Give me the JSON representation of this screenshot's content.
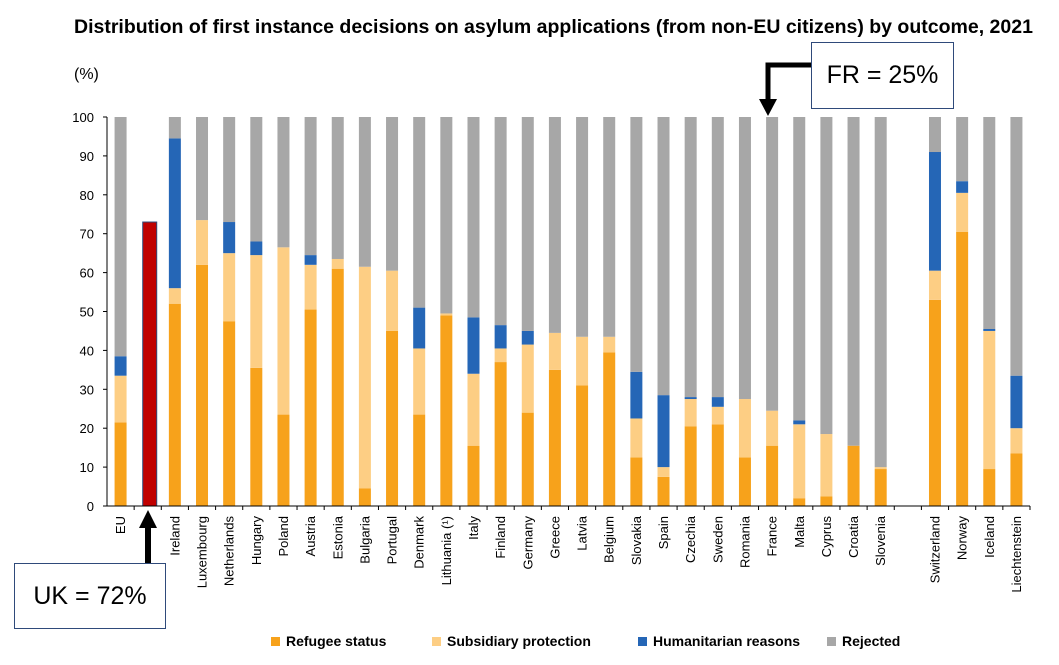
{
  "title": "Distribution of first instance decisions on asylum applications (from non-EU citizens) by outcome, 2021",
  "unit_label": "(%)",
  "callouts": {
    "fr": "FR = 25%",
    "uk": "UK  = 72%"
  },
  "colors": {
    "refugee": "#f7a21b",
    "subsidiary": "#fdce84",
    "humanitarian": "#2566b6",
    "rejected": "#a7a7a7",
    "highlight": "#c00000"
  },
  "chart_data": {
    "type": "bar",
    "stacked": true,
    "title": "Distribution of first instance decisions on asylum applications (from non-EU citizens) by outcome, 2021",
    "ylabel": "(%)",
    "ylim": [
      0,
      100
    ],
    "yticks": [
      0,
      10,
      20,
      30,
      40,
      50,
      60,
      70,
      80,
      90,
      100
    ],
    "grid": false,
    "legend_position": "bottom",
    "categories": [
      "EU",
      "",
      "Ireland",
      "Luxembourg",
      "Netherlands",
      "Hungary",
      "Poland",
      "Austria",
      "Estonia",
      "Bulgaria",
      "Portugal",
      "Denmark",
      "Lithuania (¹)",
      "Italy",
      "Finland",
      "Germany",
      "Greece",
      "Latvia",
      "Belgium",
      "Slovakia",
      "Spain",
      "Czechia",
      "Sweden",
      "Romania",
      "France",
      "Malta",
      "Cyprus",
      "Croatia",
      "Slovenia",
      "",
      "Switzerland",
      "Norway",
      "Iceland",
      "Liechtenstein"
    ],
    "series": [
      {
        "name": "Refugee status",
        "values": [
          21.5,
          null,
          52,
          62,
          47.5,
          35.5,
          23.5,
          50.5,
          61,
          4.5,
          45,
          23.5,
          49,
          15.5,
          37,
          24,
          35,
          31,
          39.5,
          12.5,
          7.5,
          20.5,
          21,
          12.5,
          15.5,
          2,
          2.5,
          15.5,
          9.5,
          null,
          53,
          70.5,
          9.5,
          13.5
        ]
      },
      {
        "name": "Subsidiary protection",
        "values": [
          12,
          null,
          4,
          11.5,
          17.5,
          29,
          43,
          11.5,
          2.5,
          57,
          15.5,
          17,
          0.5,
          18.5,
          3.5,
          17.5,
          9.5,
          12.5,
          4,
          10,
          2.5,
          7,
          4.5,
          15,
          9,
          19,
          16,
          0,
          0.5,
          null,
          7.5,
          10,
          35.5,
          6.5
        ]
      },
      {
        "name": "Humanitarian reasons",
        "values": [
          5,
          null,
          38.5,
          0,
          8,
          3.5,
          0,
          2.5,
          0,
          0,
          0,
          10.5,
          0,
          14.5,
          6,
          3.5,
          0,
          0,
          0,
          12,
          18.5,
          0.5,
          2.5,
          0,
          0,
          1,
          0,
          0,
          0,
          null,
          30.5,
          3,
          0.5,
          13.5
        ]
      },
      {
        "name": "Rejected",
        "values": [
          61.5,
          null,
          5.5,
          26.5,
          27,
          32,
          33.5,
          35.5,
          36.5,
          38.5,
          39.5,
          49,
          50.5,
          51.5,
          53.5,
          55,
          55.5,
          56.5,
          56.5,
          65.5,
          71.5,
          72,
          72,
          72.5,
          75.5,
          78,
          81.5,
          84.5,
          90,
          null,
          9,
          16.5,
          54.5,
          66.5
        ]
      },
      {
        "name": "",
        "values": [
          null,
          73,
          null,
          null,
          null,
          null,
          null,
          null,
          null,
          null,
          null,
          null,
          null,
          null,
          null,
          null,
          null,
          null,
          null,
          null,
          null,
          null,
          null,
          null,
          null,
          null,
          null,
          null,
          null,
          null,
          null,
          null,
          null,
          null
        ]
      }
    ]
  }
}
